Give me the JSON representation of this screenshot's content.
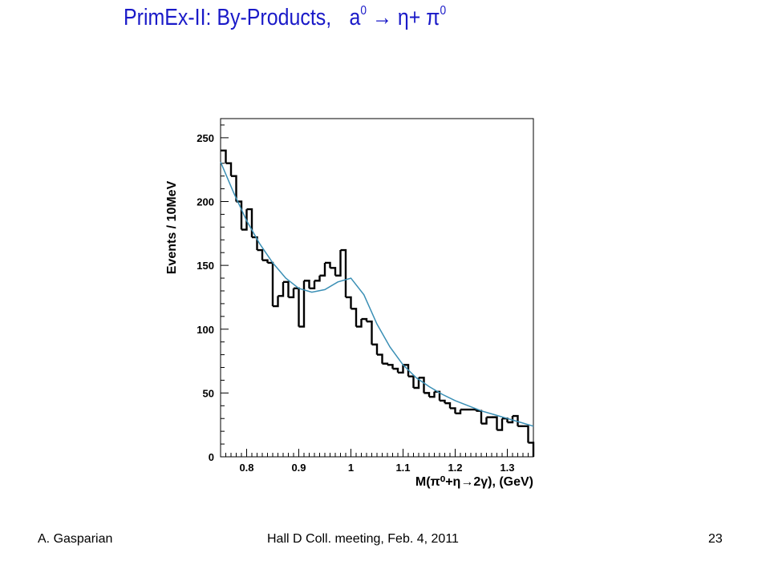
{
  "slide": {
    "title_main": "PrimEx-II: By-Products,",
    "title_a": "a",
    "title_sup1": "0",
    "title_arrow": "→",
    "title_eta": "η",
    "title_plus": "+",
    "title_pi": "π",
    "title_sup2": "0"
  },
  "footer": {
    "author": "A. Gasparian",
    "meeting": "Hall D Coll. meeting, Feb. 4, 2011",
    "page": "23"
  },
  "colors": {
    "title": "#1a1ac8",
    "histogram": "#000000",
    "fit": "#3a8fb5"
  },
  "chart_data": {
    "type": "histogram",
    "ylabel": "Events / 10MeV",
    "xlabel": "M(π⁰+η→2γ),  (GeV)",
    "xlim": [
      0.75,
      1.35
    ],
    "ylim": [
      0,
      265
    ],
    "x_ticks": [
      0.8,
      0.9,
      1.0,
      1.1,
      1.2,
      1.3
    ],
    "x_tick_labels": [
      "0.8",
      "0.9",
      "1",
      "1.1",
      "1.2",
      "1.3"
    ],
    "y_ticks": [
      0,
      50,
      100,
      150,
      200,
      250
    ],
    "y_tick_labels": [
      "0",
      "50",
      "100",
      "150",
      "200",
      "250"
    ],
    "bin_width": 0.01,
    "bin_start": 0.75,
    "counts": [
      240,
      230,
      220,
      200,
      178,
      194,
      172,
      162,
      154,
      152,
      118,
      126,
      137,
      125,
      132,
      102,
      138,
      132,
      138,
      142,
      152,
      148,
      142,
      162,
      125,
      116,
      102,
      108,
      106,
      88,
      80,
      73,
      72,
      69,
      66,
      72,
      63,
      54,
      62,
      50,
      47,
      51,
      44,
      42,
      38,
      34,
      37,
      37,
      37,
      36,
      26,
      31,
      31,
      21,
      30,
      27,
      32,
      24,
      24,
      11
    ],
    "fit": {
      "x": [
        0.75,
        0.775,
        0.8,
        0.825,
        0.85,
        0.875,
        0.9,
        0.925,
        0.95,
        0.975,
        1.0,
        1.025,
        1.05,
        1.075,
        1.1,
        1.125,
        1.15,
        1.175,
        1.2,
        1.225,
        1.25,
        1.275,
        1.3,
        1.325,
        1.35
      ],
      "y": [
        231,
        207,
        185,
        167,
        152,
        140,
        132,
        129,
        131,
        137,
        140,
        127,
        104,
        86,
        72,
        62,
        55,
        49,
        44,
        40,
        36,
        33,
        30,
        27,
        24
      ]
    }
  }
}
